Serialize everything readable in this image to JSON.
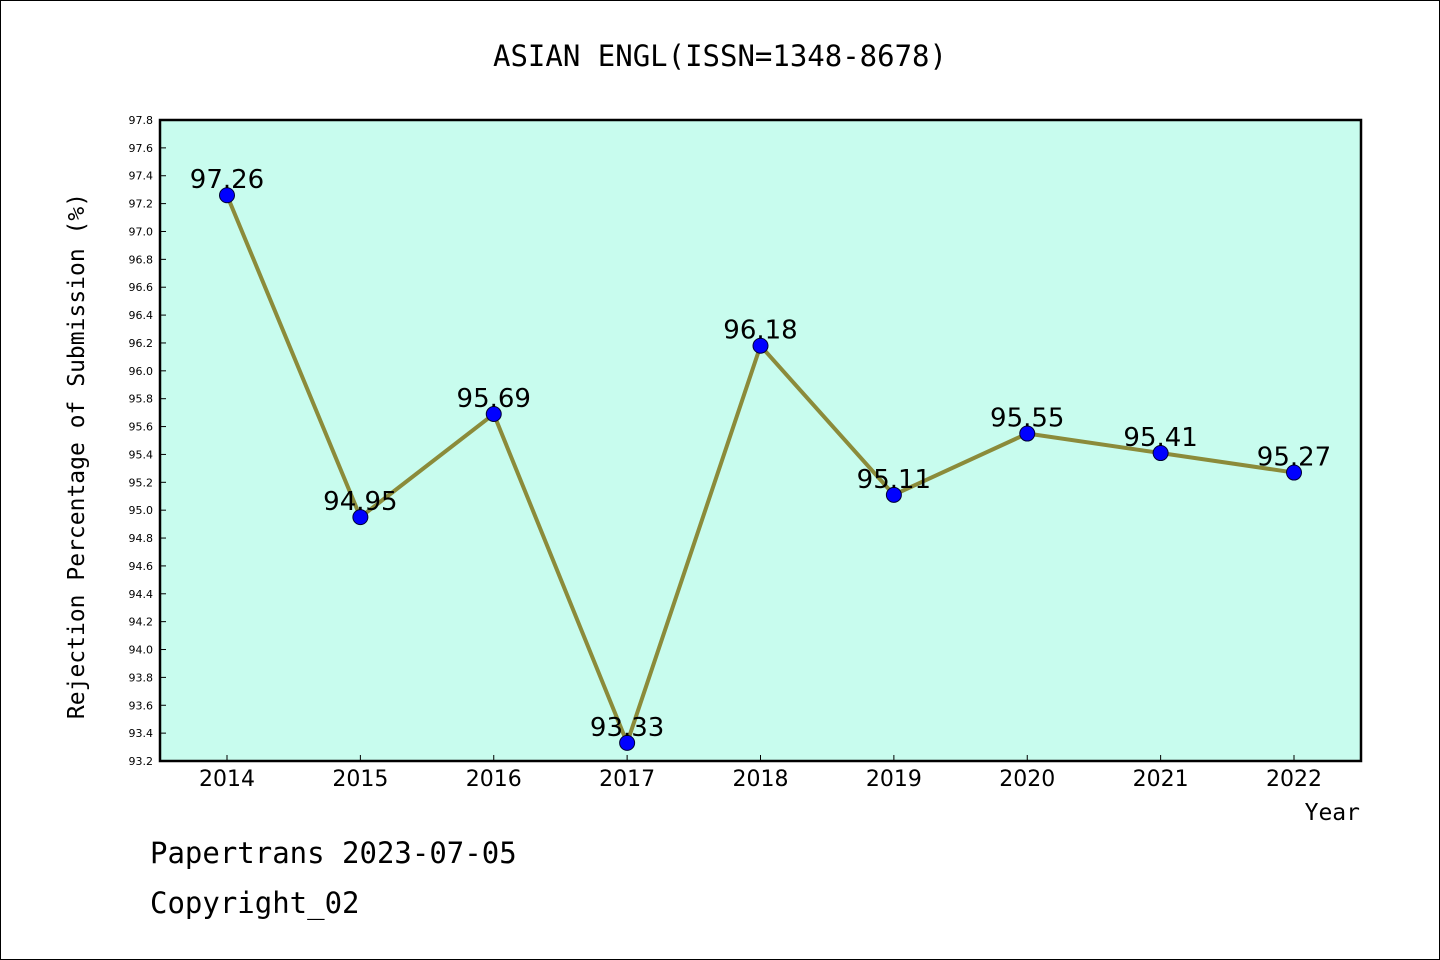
{
  "chart_data": {
    "type": "line",
    "title": "ASIAN ENGL(ISSN=1348-8678)",
    "xlabel": "Year",
    "ylabel": "Rejection Percentage of Submission (%)",
    "ylim": [
      93.2,
      97.8
    ],
    "y_tick_step": 0.2,
    "categories": [
      "2014",
      "2015",
      "2016",
      "2017",
      "2018",
      "2019",
      "2020",
      "2021",
      "2022"
    ],
    "values": [
      97.26,
      94.95,
      95.69,
      93.33,
      96.18,
      95.11,
      95.55,
      95.41,
      95.27
    ],
    "data_labels": [
      "97.26",
      "94.95",
      "95.69",
      "93.33",
      "96.18",
      "95.11",
      "95.55",
      "95.41",
      "95.27"
    ],
    "grid": false,
    "colors": {
      "plot_background": "#c8fcee",
      "line": "#8b8b3a",
      "marker": "#0000ff"
    }
  },
  "footer": {
    "line1": "Papertrans 2023-07-05",
    "line2": "Copyright_02"
  }
}
